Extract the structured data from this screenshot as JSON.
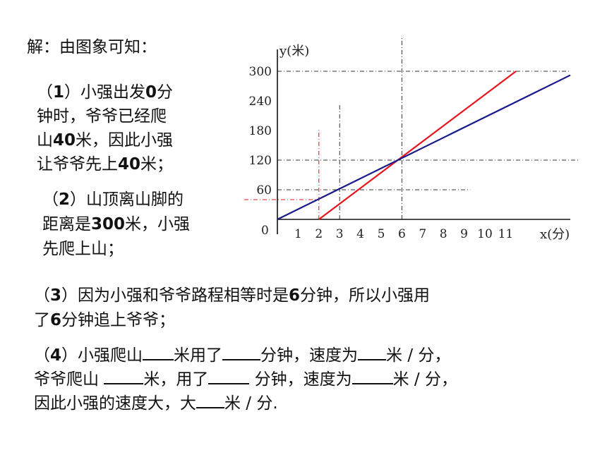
{
  "heading": "解：由图象可知：",
  "p1": {
    "l1a": "（",
    "l1n": "1",
    "l1b": "）小强出发",
    "l1c": "0",
    "l1d": "分",
    "l2": "钟时，爷爷已经爬",
    "l3a": "山",
    "l3n": "40",
    "l3b": "米，因此小强",
    "l4a": "让爷爷先上",
    "l4n": "40",
    "l4b": "米；"
  },
  "p2": {
    "l1a": "（",
    "l1n": "2",
    "l1b": "）山顶离山脚的",
    "l2a": "距离是",
    "l2n": "300",
    "l2b": "米，小强",
    "l3": "先爬上山；"
  },
  "p3": {
    "l1a": "（",
    "l1n": "3",
    "l1b": "）因为小强和爷爷路程相等时是",
    "l1c": "6",
    "l1d": "分钟，所以小强用",
    "l2a": "了",
    "l2n": "6",
    "l2b": "分钟追上爷爷；"
  },
  "p4": {
    "l1a": "（",
    "l1n": "4",
    "l1b": "）小强爬山",
    "l1c": "米用了",
    "l1d": "分钟，速度为",
    "l1e": "米 / 分，",
    "l2a": "爷爷爬山 ",
    "l2b": "米，用了",
    "l2c": " 分钟，速度为",
    "l2d": "米 / 分，",
    "l3a": "因此小强的速度大，大",
    "l3b": "米 / 分."
  },
  "chart_data": {
    "type": "line",
    "xlabel": "x(分)",
    "ylabel": "y(米)",
    "origin_label": "0",
    "xlim": [
      0,
      12
    ],
    "ylim": [
      0,
      300
    ],
    "x_ticks": [
      "1",
      "2",
      "3",
      "4",
      "5",
      "6",
      "7",
      "8",
      "9",
      "10",
      "11"
    ],
    "y_ticks": [
      "60",
      "120",
      "180",
      "240",
      "300"
    ],
    "colors": {
      "xiaoqiang": "#e8141e",
      "grandpa": "#1a1a8c"
    },
    "series": [
      {
        "points": [
          [
            2,
            0
          ],
          [
            11.5,
            300
          ]
        ]
      },
      {
        "points": [
          [
            0,
            0
          ],
          [
            14.5,
            300
          ]
        ]
      }
    ]
  }
}
